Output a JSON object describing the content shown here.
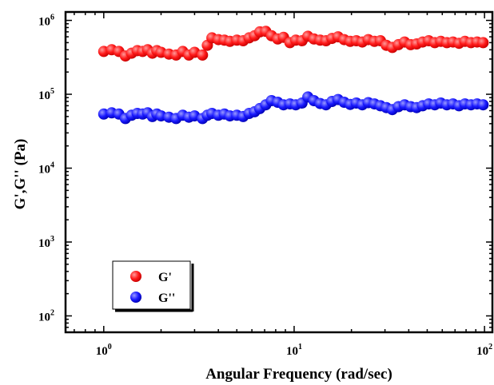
{
  "chart_data": {
    "type": "scatter",
    "xlabel": "Angular Frequency (rad/sec)",
    "ylabel": "G',G'' (Pa)",
    "xscale": "log",
    "yscale": "log",
    "xlim": [
      0.63,
      110
    ],
    "ylim": [
      60,
      1300000
    ],
    "x_ticks": [
      {
        "value": 1,
        "base": "10",
        "exp": "0"
      },
      {
        "value": 10,
        "base": "10",
        "exp": "1"
      },
      {
        "value": 100,
        "base": "10",
        "exp": "2"
      }
    ],
    "y_ticks": [
      {
        "value": 100,
        "base": "10",
        "exp": "2"
      },
      {
        "value": 1000,
        "base": "10",
        "exp": "3"
      },
      {
        "value": 10000,
        "base": "10",
        "exp": "4"
      },
      {
        "value": 100000,
        "base": "10",
        "exp": "5"
      },
      {
        "value": 1000000,
        "base": "10",
        "exp": "6"
      }
    ],
    "legend_position": "bottom-left",
    "series": [
      {
        "name": "G'",
        "color": "#ff1a1a",
        "x": [
          1.0,
          1.1,
          1.2,
          1.3,
          1.4,
          1.5,
          1.6,
          1.7,
          1.8,
          1.9,
          2.0,
          2.2,
          2.4,
          2.6,
          2.8,
          3.0,
          3.3,
          3.5,
          3.7,
          4.0,
          4.3,
          4.6,
          5.0,
          5.4,
          5.8,
          6.2,
          6.6,
          7.1,
          7.6,
          8.2,
          8.8,
          9.5,
          10.2,
          11.0,
          11.8,
          12.7,
          13.7,
          14.7,
          15.8,
          17.0,
          18.3,
          19.7,
          21.2,
          22.8,
          24.5,
          26.4,
          28.4,
          30.5,
          32.8,
          35.3,
          38.0,
          40.9,
          44.0,
          47.3,
          50.9,
          54.8,
          58.9,
          63.4,
          68.2,
          73.4,
          78.9,
          84.9,
          91.4,
          98.3
        ],
        "y": [
          380000,
          400000,
          380000,
          330000,
          360000,
          390000,
          380000,
          400000,
          360000,
          390000,
          370000,
          350000,
          340000,
          380000,
          340000,
          370000,
          340000,
          460000,
          580000,
          550000,
          540000,
          520000,
          540000,
          530000,
          580000,
          620000,
          700000,
          710000,
          620000,
          560000,
          590000,
          500000,
          540000,
          530000,
          610000,
          560000,
          540000,
          530000,
          570000,
          600000,
          550000,
          520000,
          530000,
          510000,
          550000,
          520000,
          530000,
          460000,
          430000,
          470000,
          510000,
          470000,
          480000,
          510000,
          530000,
          500000,
          520000,
          500000,
          510000,
          490000,
          520000,
          500000,
          510000,
          500000
        ]
      },
      {
        "name": "G''",
        "color": "#1a1aff",
        "x": [
          1.0,
          1.1,
          1.2,
          1.3,
          1.4,
          1.5,
          1.6,
          1.7,
          1.8,
          1.9,
          2.0,
          2.2,
          2.4,
          2.6,
          2.8,
          3.0,
          3.3,
          3.5,
          3.7,
          4.0,
          4.3,
          4.6,
          5.0,
          5.4,
          5.8,
          6.2,
          6.6,
          7.1,
          7.6,
          8.2,
          8.8,
          9.5,
          10.2,
          11.0,
          11.8,
          12.7,
          13.7,
          14.7,
          15.8,
          17.0,
          18.3,
          19.7,
          21.2,
          22.8,
          24.5,
          26.4,
          28.4,
          30.5,
          32.8,
          35.3,
          38.0,
          40.9,
          44.0,
          47.3,
          50.9,
          54.8,
          58.9,
          63.4,
          68.2,
          73.4,
          78.9,
          84.9,
          91.4,
          98.3
        ],
        "y": [
          54000,
          56000,
          54000,
          47000,
          52000,
          55000,
          54000,
          56000,
          50000,
          54000,
          51000,
          49000,
          47000,
          52000,
          49000,
          51000,
          47000,
          52000,
          55000,
          52000,
          54000,
          51000,
          52000,
          50000,
          55000,
          58000,
          64000,
          72000,
          82000,
          78000,
          72000,
          74000,
          72000,
          76000,
          92000,
          82000,
          75000,
          72000,
          80000,
          85000,
          78000,
          73000,
          76000,
          72000,
          77000,
          74000,
          70000,
          66000,
          62000,
          68000,
          72000,
          68000,
          66000,
          70000,
          74000,
          72000,
          76000,
          72000,
          74000,
          70000,
          74000,
          72000,
          74000,
          72000
        ]
      }
    ]
  }
}
